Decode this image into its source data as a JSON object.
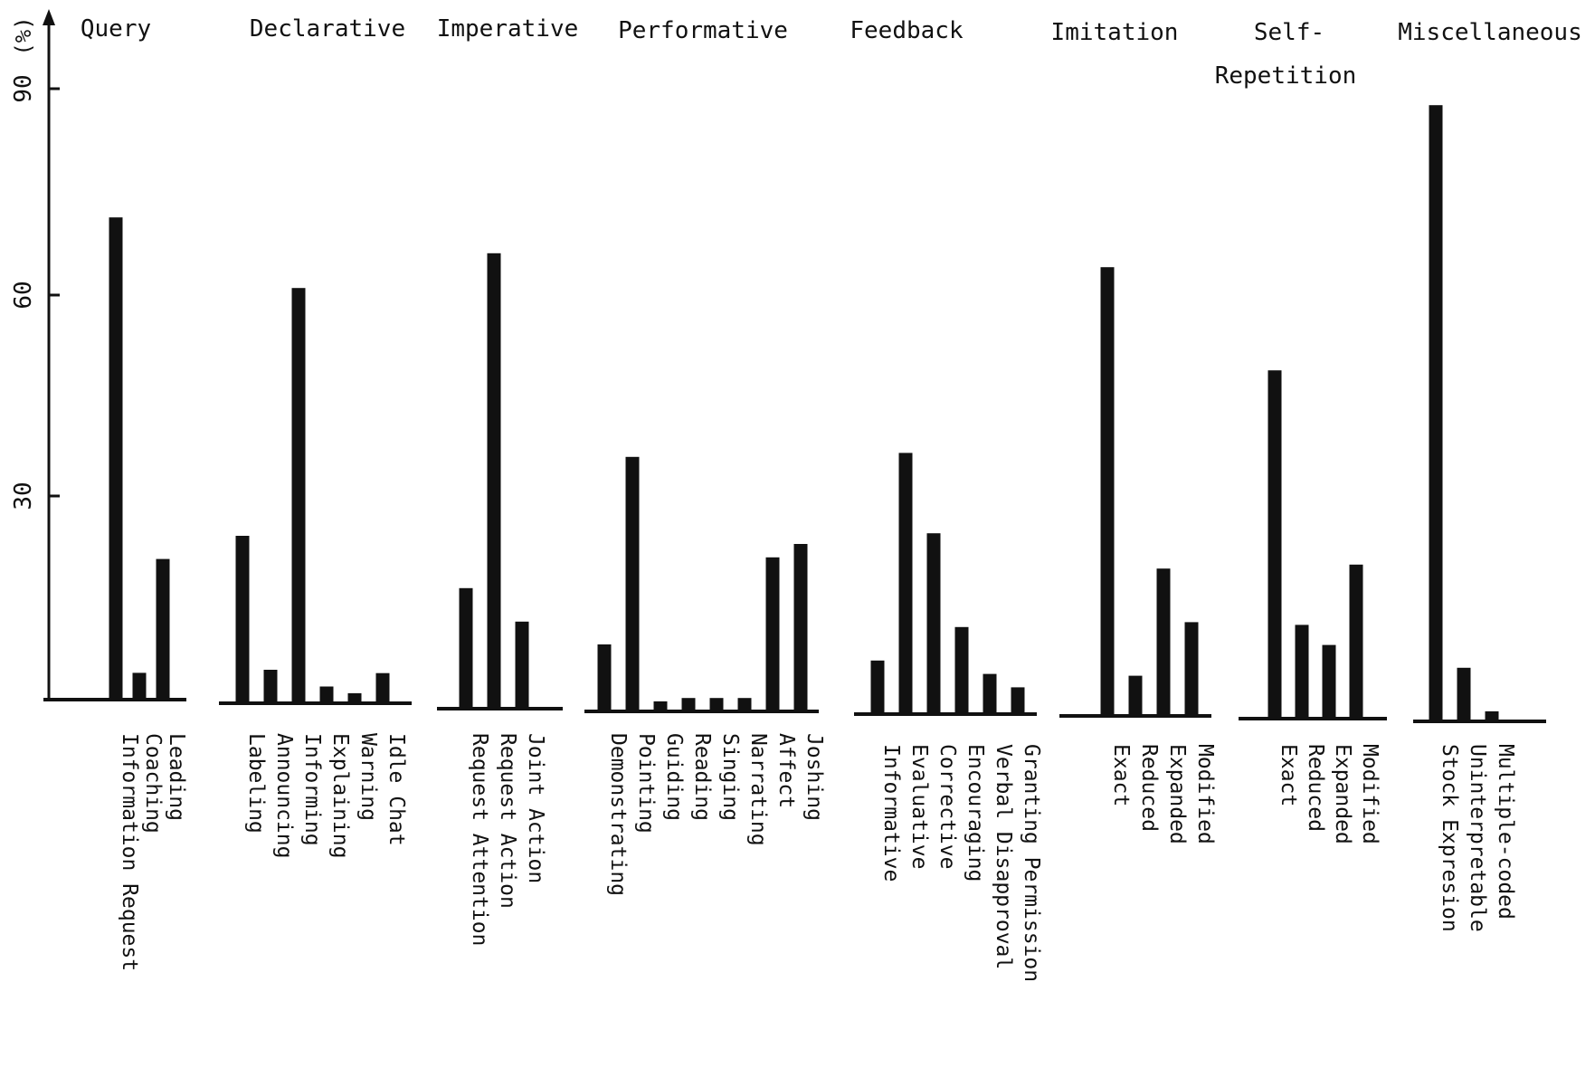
{
  "chart_data": {
    "type": "bar",
    "ylabel": "(%)",
    "ylim": [
      0,
      90
    ],
    "yticks": [
      "30",
      "60",
      "90"
    ],
    "bar_color": "#111111",
    "groups": [
      {
        "name": "Query",
        "categories": [
          "Information Request",
          "Coaching",
          "Leading"
        ],
        "values": [
          72,
          4,
          21
        ]
      },
      {
        "name": "Declarative",
        "categories": [
          "Labeling",
          "Announcing",
          "Informing",
          "Explaining",
          "Warning",
          "Idle Chat"
        ],
        "values": [
          25,
          5,
          62,
          2.5,
          1.5,
          4.5
        ]
      },
      {
        "name": "Imperative",
        "categories": [
          "Request Attention",
          "Request Action",
          "Joint Action"
        ],
        "values": [
          18,
          68,
          13
        ]
      },
      {
        "name": "Performative",
        "categories": [
          "Demonstrating",
          "Pointing",
          "Guiding",
          "Reading",
          "Singing",
          "Narrating",
          "Affect",
          "Joshing"
        ],
        "values": [
          10,
          38,
          1.5,
          2,
          2,
          2,
          23,
          25
        ]
      },
      {
        "name": "Feedback",
        "categories": [
          "Informative",
          "Evaluative",
          "Corrective",
          "Encouraging",
          "Verbal Disapproval",
          "Granting Permission"
        ],
        "values": [
          8,
          39,
          27,
          13,
          6,
          4
        ]
      },
      {
        "name": "Imitation",
        "categories": [
          "Exact",
          "Reduced",
          "Expanded",
          "Modified"
        ],
        "values": [
          67,
          6,
          22,
          14
        ]
      },
      {
        "name": "Self-\nRepetition",
        "categories": [
          "Exact",
          "Reduced",
          "Expanded",
          "Modified"
        ],
        "values": [
          52,
          14,
          11,
          23
        ]
      },
      {
        "name": "Miscellaneous",
        "categories": [
          "Stock Expresion",
          "Uninterpretable",
          "Multiple-coded"
        ],
        "values": [
          92,
          8,
          1.5
        ]
      }
    ]
  }
}
